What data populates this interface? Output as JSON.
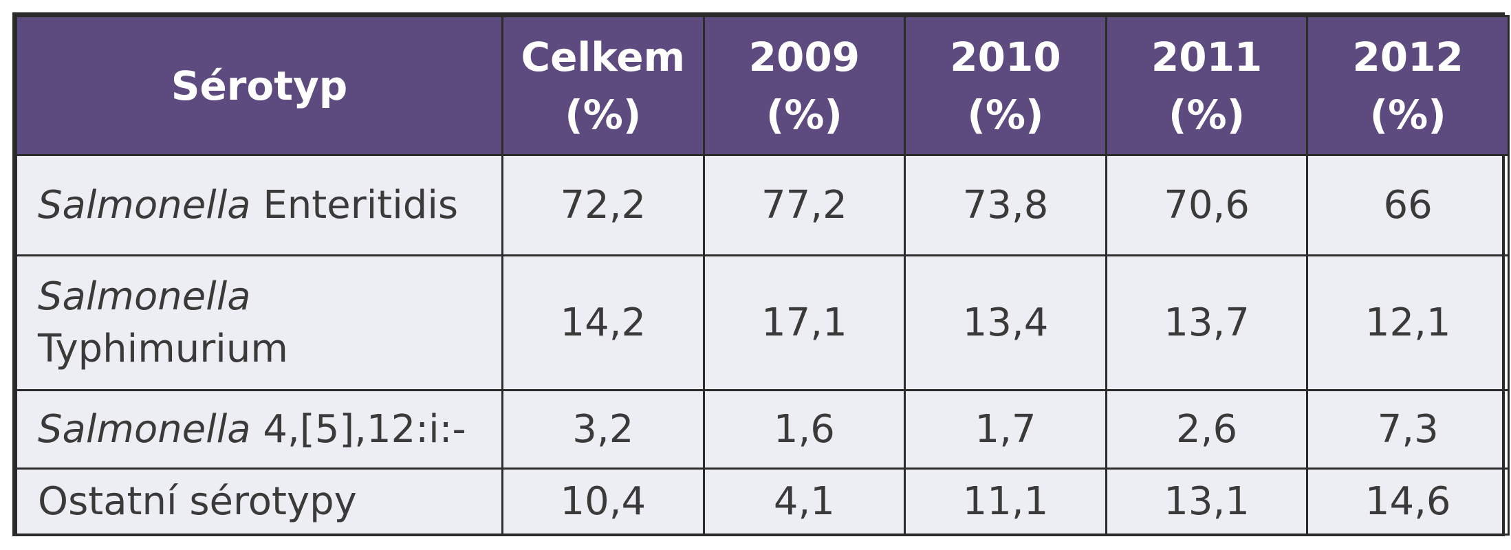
{
  "table": {
    "headers": [
      {
        "line1": "Sérotyp",
        "line2": ""
      },
      {
        "line1": "Celkem",
        "line2": "(%)"
      },
      {
        "line1": "2009",
        "line2": "(%)"
      },
      {
        "line1": "2010",
        "line2": "(%)"
      },
      {
        "line1": "2011",
        "line2": "(%)"
      },
      {
        "line1": "2012",
        "line2": "(%)"
      }
    ],
    "rows": [
      {
        "label_italic": "Salmonella",
        "label_rest": " Enteritidis",
        "values": [
          "72,2",
          "77,2",
          "73,8",
          "70,6",
          "66"
        ]
      },
      {
        "label_italic": "Salmonella",
        "label_rest": "Typhimurium",
        "values": [
          "14,2",
          "17,1",
          "13,4",
          "13,7",
          "12,1"
        ]
      },
      {
        "label_italic": "Salmonella",
        "label_rest": " 4,[5],12:i:-",
        "values": [
          "3,2",
          "1,6",
          "1,7",
          "2,6",
          "7,3"
        ]
      },
      {
        "label_italic": "",
        "label_rest": "Ostatní sérotypy",
        "values": [
          "10,4",
          "4,1",
          "11,1",
          "13,1",
          "14,6"
        ]
      }
    ]
  },
  "colors": {
    "header_bg": "#5d4a7e",
    "body_bg": "#edeef4",
    "border": "#2b2b2b"
  }
}
